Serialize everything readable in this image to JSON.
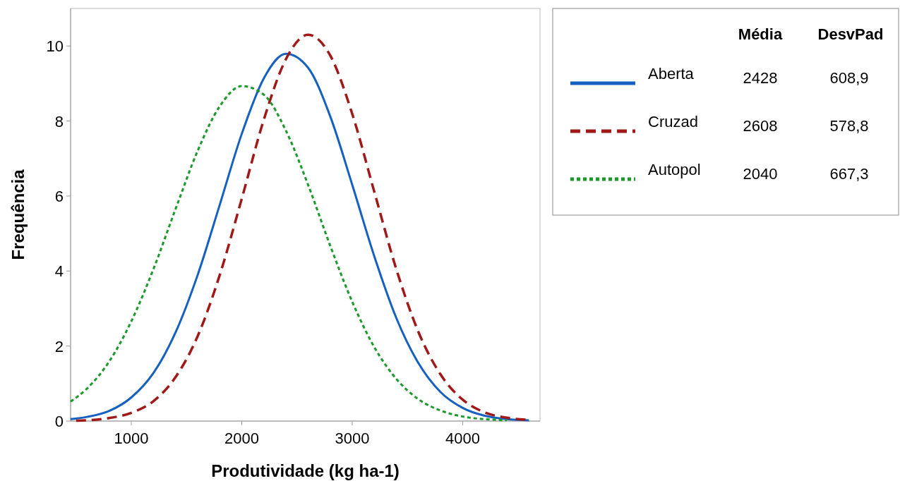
{
  "chart_data": {
    "type": "line",
    "xlabel": "Produtividade (kg ha-1)",
    "ylabel": "Frequência",
    "x": [
      450,
      600,
      800,
      1000,
      1200,
      1400,
      1600,
      1800,
      2000,
      2200,
      2400,
      2600,
      2800,
      3000,
      3200,
      3400,
      3600,
      3800,
      4000,
      4200,
      4400,
      4600
    ],
    "series": [
      {
        "name": "Aberta",
        "color": "#1660c0",
        "line_style": "solid",
        "values": [
          0.05,
          0.11,
          0.27,
          0.63,
          1.28,
          2.36,
          3.89,
          5.76,
          7.66,
          9.14,
          9.79,
          9.42,
          8.13,
          6.3,
          4.39,
          2.74,
          1.54,
          0.77,
          0.35,
          0.14,
          0.05,
          0.02
        ]
      },
      {
        "name": "Cruzad",
        "color": "#a01818",
        "line_style": "dashed",
        "x": [
          500,
          600,
          800,
          1000,
          1200,
          1400,
          1600,
          1800,
          2000,
          2200,
          2400,
          2600,
          2800,
          3000,
          3200,
          3400,
          3600,
          3800,
          4000,
          4200,
          4400,
          4600
        ],
        "values": [
          0.01,
          0.02,
          0.08,
          0.22,
          0.53,
          1.17,
          2.26,
          3.89,
          5.93,
          8.04,
          9.65,
          10.3,
          9.75,
          8.19,
          6.11,
          4.04,
          2.37,
          1.24,
          0.57,
          0.23,
          0.09,
          0.03
        ]
      },
      {
        "name": "Autopol",
        "color": "#1a9a2a",
        "line_style": "dotted",
        "x": [
          450,
          600,
          800,
          1000,
          1200,
          1400,
          1600,
          1800,
          2000,
          2200,
          2400,
          2600,
          2800,
          3000,
          3200,
          3400,
          3600,
          3800,
          4000,
          4200,
          4400
        ],
        "values": [
          0.52,
          0.87,
          1.59,
          2.66,
          4.05,
          5.65,
          7.2,
          8.39,
          8.93,
          8.7,
          7.74,
          6.3,
          4.68,
          3.18,
          1.97,
          1.12,
          0.58,
          0.28,
          0.12,
          0.05,
          0.02
        ]
      }
    ],
    "xlim": [
      450,
      4700
    ],
    "xticks": [
      1000,
      2000,
      3000,
      4000
    ],
    "ylim": [
      0,
      11
    ],
    "yticks": [
      0,
      2,
      4,
      6,
      8,
      10
    ],
    "grid": false,
    "legend": "right",
    "marker": "none",
    "annotations": [
      "Média",
      "DesvPad",
      "2428",
      "608,9",
      "2608",
      "578,8",
      "2040",
      "667,3"
    ]
  }
}
